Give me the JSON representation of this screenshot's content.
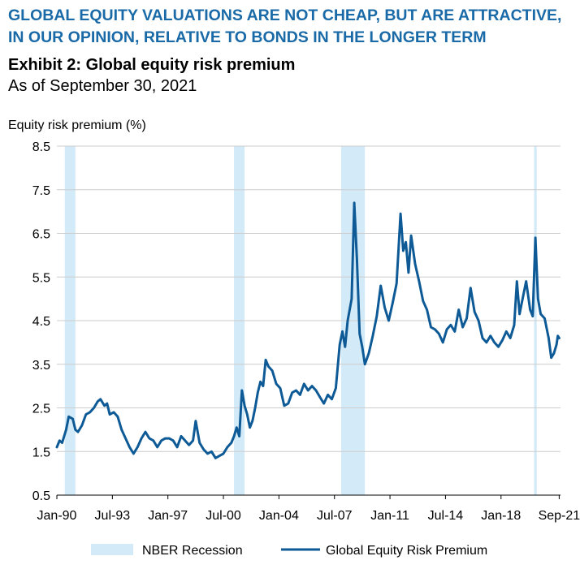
{
  "header": {
    "headline": "GLOBAL EQUITY VALUATIONS ARE NOT CHEAP, BUT ARE ATTRACTIVE, IN OUR OPINION, RELATIVE TO BONDS IN THE LONGER TERM",
    "exhibit": "Exhibit 2: Global equity risk premium",
    "as_of": "As of September 30, 2021"
  },
  "colors": {
    "series": "#0d5a96",
    "recession": "#d3eaf8",
    "grid": "#cccccc",
    "headline": "#1a6aa8"
  },
  "chart_data": {
    "type": "line",
    "ylabel": "Equity risk premium (%)",
    "xlabel": "",
    "ylim": [
      0.5,
      8.5
    ],
    "xlim": [
      "1990-01",
      "2021-10"
    ],
    "yticks": [
      0.5,
      1.5,
      2.5,
      3.5,
      4.5,
      5.5,
      6.5,
      7.5,
      8.5
    ],
    "ytick_labels": [
      "0.5",
      "1.5",
      "2.5",
      "3.5",
      "4.5",
      "5.5",
      "6.5",
      "7.5",
      "8.5"
    ],
    "xticks": [
      "1990-01",
      "1993-07",
      "1997-01",
      "2000-07",
      "2004-01",
      "2007-07",
      "2011-01",
      "2014-07",
      "2018-01",
      "2021-09"
    ],
    "xtick_labels": [
      "Jan-90",
      "Jul-93",
      "Jan-97",
      "Jul-00",
      "Jan-04",
      "Jul-07",
      "Jan-11",
      "Jul-14",
      "Jan-18",
      "Sep-21"
    ],
    "grid": true,
    "legend_position": "bottom",
    "legend": [
      "NBER Recession",
      "Global Equity Risk Premium"
    ],
    "recessions": [
      {
        "start": "1990-07",
        "end": "1991-03"
      },
      {
        "start": "2001-03",
        "end": "2001-11"
      },
      {
        "start": "2007-12",
        "end": "2009-06"
      },
      {
        "start": "2020-02",
        "end": "2020-04"
      }
    ],
    "series": [
      {
        "name": "Global Equity Risk Premium",
        "points": [
          [
            "1990-01",
            1.6
          ],
          [
            "1990-03",
            1.75
          ],
          [
            "1990-05",
            1.7
          ],
          [
            "1990-08",
            2.0
          ],
          [
            "1990-10",
            2.3
          ],
          [
            "1991-01",
            2.25
          ],
          [
            "1991-03",
            2.0
          ],
          [
            "1991-05",
            1.95
          ],
          [
            "1991-08",
            2.1
          ],
          [
            "1991-11",
            2.35
          ],
          [
            "1992-02",
            2.4
          ],
          [
            "1992-05",
            2.5
          ],
          [
            "1992-08",
            2.65
          ],
          [
            "1992-10",
            2.7
          ],
          [
            "1993-01",
            2.55
          ],
          [
            "1993-03",
            2.6
          ],
          [
            "1993-05",
            2.35
          ],
          [
            "1993-08",
            2.4
          ],
          [
            "1993-11",
            2.3
          ],
          [
            "1994-02",
            2.0
          ],
          [
            "1994-05",
            1.8
          ],
          [
            "1994-08",
            1.6
          ],
          [
            "1994-11",
            1.45
          ],
          [
            "1995-02",
            1.6
          ],
          [
            "1995-05",
            1.8
          ],
          [
            "1995-08",
            1.95
          ],
          [
            "1995-11",
            1.8
          ],
          [
            "1996-02",
            1.75
          ],
          [
            "1996-05",
            1.6
          ],
          [
            "1996-08",
            1.75
          ],
          [
            "1996-11",
            1.8
          ],
          [
            "1997-02",
            1.8
          ],
          [
            "1997-05",
            1.75
          ],
          [
            "1997-08",
            1.6
          ],
          [
            "1997-11",
            1.85
          ],
          [
            "1998-02",
            1.75
          ],
          [
            "1998-05",
            1.65
          ],
          [
            "1998-08",
            1.75
          ],
          [
            "1998-10",
            2.2
          ],
          [
            "1999-01",
            1.7
          ],
          [
            "1999-04",
            1.55
          ],
          [
            "1999-07",
            1.45
          ],
          [
            "1999-10",
            1.5
          ],
          [
            "2000-01",
            1.35
          ],
          [
            "2000-04",
            1.4
          ],
          [
            "2000-07",
            1.45
          ],
          [
            "2000-10",
            1.6
          ],
          [
            "2001-01",
            1.7
          ],
          [
            "2001-03",
            1.85
          ],
          [
            "2001-05",
            2.05
          ],
          [
            "2001-07",
            1.85
          ],
          [
            "2001-09",
            2.9
          ],
          [
            "2001-11",
            2.55
          ],
          [
            "2002-01",
            2.35
          ],
          [
            "2002-03",
            2.05
          ],
          [
            "2002-05",
            2.2
          ],
          [
            "2002-07",
            2.5
          ],
          [
            "2002-09",
            2.85
          ],
          [
            "2002-11",
            3.1
          ],
          [
            "2003-01",
            3.0
          ],
          [
            "2003-03",
            3.6
          ],
          [
            "2003-05",
            3.45
          ],
          [
            "2003-08",
            3.35
          ],
          [
            "2003-11",
            3.05
          ],
          [
            "2004-02",
            2.95
          ],
          [
            "2004-05",
            2.55
          ],
          [
            "2004-08",
            2.6
          ],
          [
            "2004-11",
            2.85
          ],
          [
            "2005-02",
            2.9
          ],
          [
            "2005-05",
            2.8
          ],
          [
            "2005-08",
            3.05
          ],
          [
            "2005-11",
            2.9
          ],
          [
            "2006-02",
            3.0
          ],
          [
            "2006-05",
            2.9
          ],
          [
            "2006-08",
            2.75
          ],
          [
            "2006-11",
            2.6
          ],
          [
            "2007-02",
            2.8
          ],
          [
            "2007-05",
            2.7
          ],
          [
            "2007-08",
            2.95
          ],
          [
            "2007-11",
            3.95
          ],
          [
            "2008-01",
            4.25
          ],
          [
            "2008-03",
            3.9
          ],
          [
            "2008-05",
            4.5
          ],
          [
            "2008-08",
            5.0
          ],
          [
            "2008-10",
            7.2
          ],
          [
            "2008-12",
            5.9
          ],
          [
            "2009-02",
            4.2
          ],
          [
            "2009-04",
            3.9
          ],
          [
            "2009-06",
            3.5
          ],
          [
            "2009-09",
            3.75
          ],
          [
            "2009-12",
            4.15
          ],
          [
            "2010-03",
            4.6
          ],
          [
            "2010-06",
            5.3
          ],
          [
            "2010-09",
            4.8
          ],
          [
            "2010-12",
            4.5
          ],
          [
            "2011-03",
            4.9
          ],
          [
            "2011-06",
            5.35
          ],
          [
            "2011-09",
            6.95
          ],
          [
            "2011-11",
            6.1
          ],
          [
            "2012-01",
            6.3
          ],
          [
            "2012-03",
            5.6
          ],
          [
            "2012-05",
            6.45
          ],
          [
            "2012-08",
            5.8
          ],
          [
            "2012-11",
            5.4
          ],
          [
            "2013-02",
            4.95
          ],
          [
            "2013-05",
            4.75
          ],
          [
            "2013-08",
            4.35
          ],
          [
            "2013-11",
            4.3
          ],
          [
            "2014-02",
            4.2
          ],
          [
            "2014-05",
            4.0
          ],
          [
            "2014-08",
            4.3
          ],
          [
            "2014-11",
            4.4
          ],
          [
            "2015-02",
            4.25
          ],
          [
            "2015-05",
            4.75
          ],
          [
            "2015-08",
            4.35
          ],
          [
            "2015-11",
            4.55
          ],
          [
            "2016-02",
            5.25
          ],
          [
            "2016-05",
            4.7
          ],
          [
            "2016-08",
            4.5
          ],
          [
            "2016-11",
            4.1
          ],
          [
            "2017-02",
            4.0
          ],
          [
            "2017-05",
            4.15
          ],
          [
            "2017-08",
            4.0
          ],
          [
            "2017-11",
            3.9
          ],
          [
            "2018-02",
            4.05
          ],
          [
            "2018-05",
            4.25
          ],
          [
            "2018-08",
            4.1
          ],
          [
            "2018-11",
            4.4
          ],
          [
            "2019-01",
            5.4
          ],
          [
            "2019-03",
            4.65
          ],
          [
            "2019-05",
            4.95
          ],
          [
            "2019-08",
            5.4
          ],
          [
            "2019-11",
            4.75
          ],
          [
            "2020-01",
            4.6
          ],
          [
            "2020-03",
            6.4
          ],
          [
            "2020-05",
            5.0
          ],
          [
            "2020-07",
            4.65
          ],
          [
            "2020-10",
            4.55
          ],
          [
            "2021-01",
            4.1
          ],
          [
            "2021-03",
            3.65
          ],
          [
            "2021-05",
            3.75
          ],
          [
            "2021-07",
            3.95
          ],
          [
            "2021-08",
            4.15
          ],
          [
            "2021-09",
            4.1
          ]
        ]
      }
    ]
  }
}
